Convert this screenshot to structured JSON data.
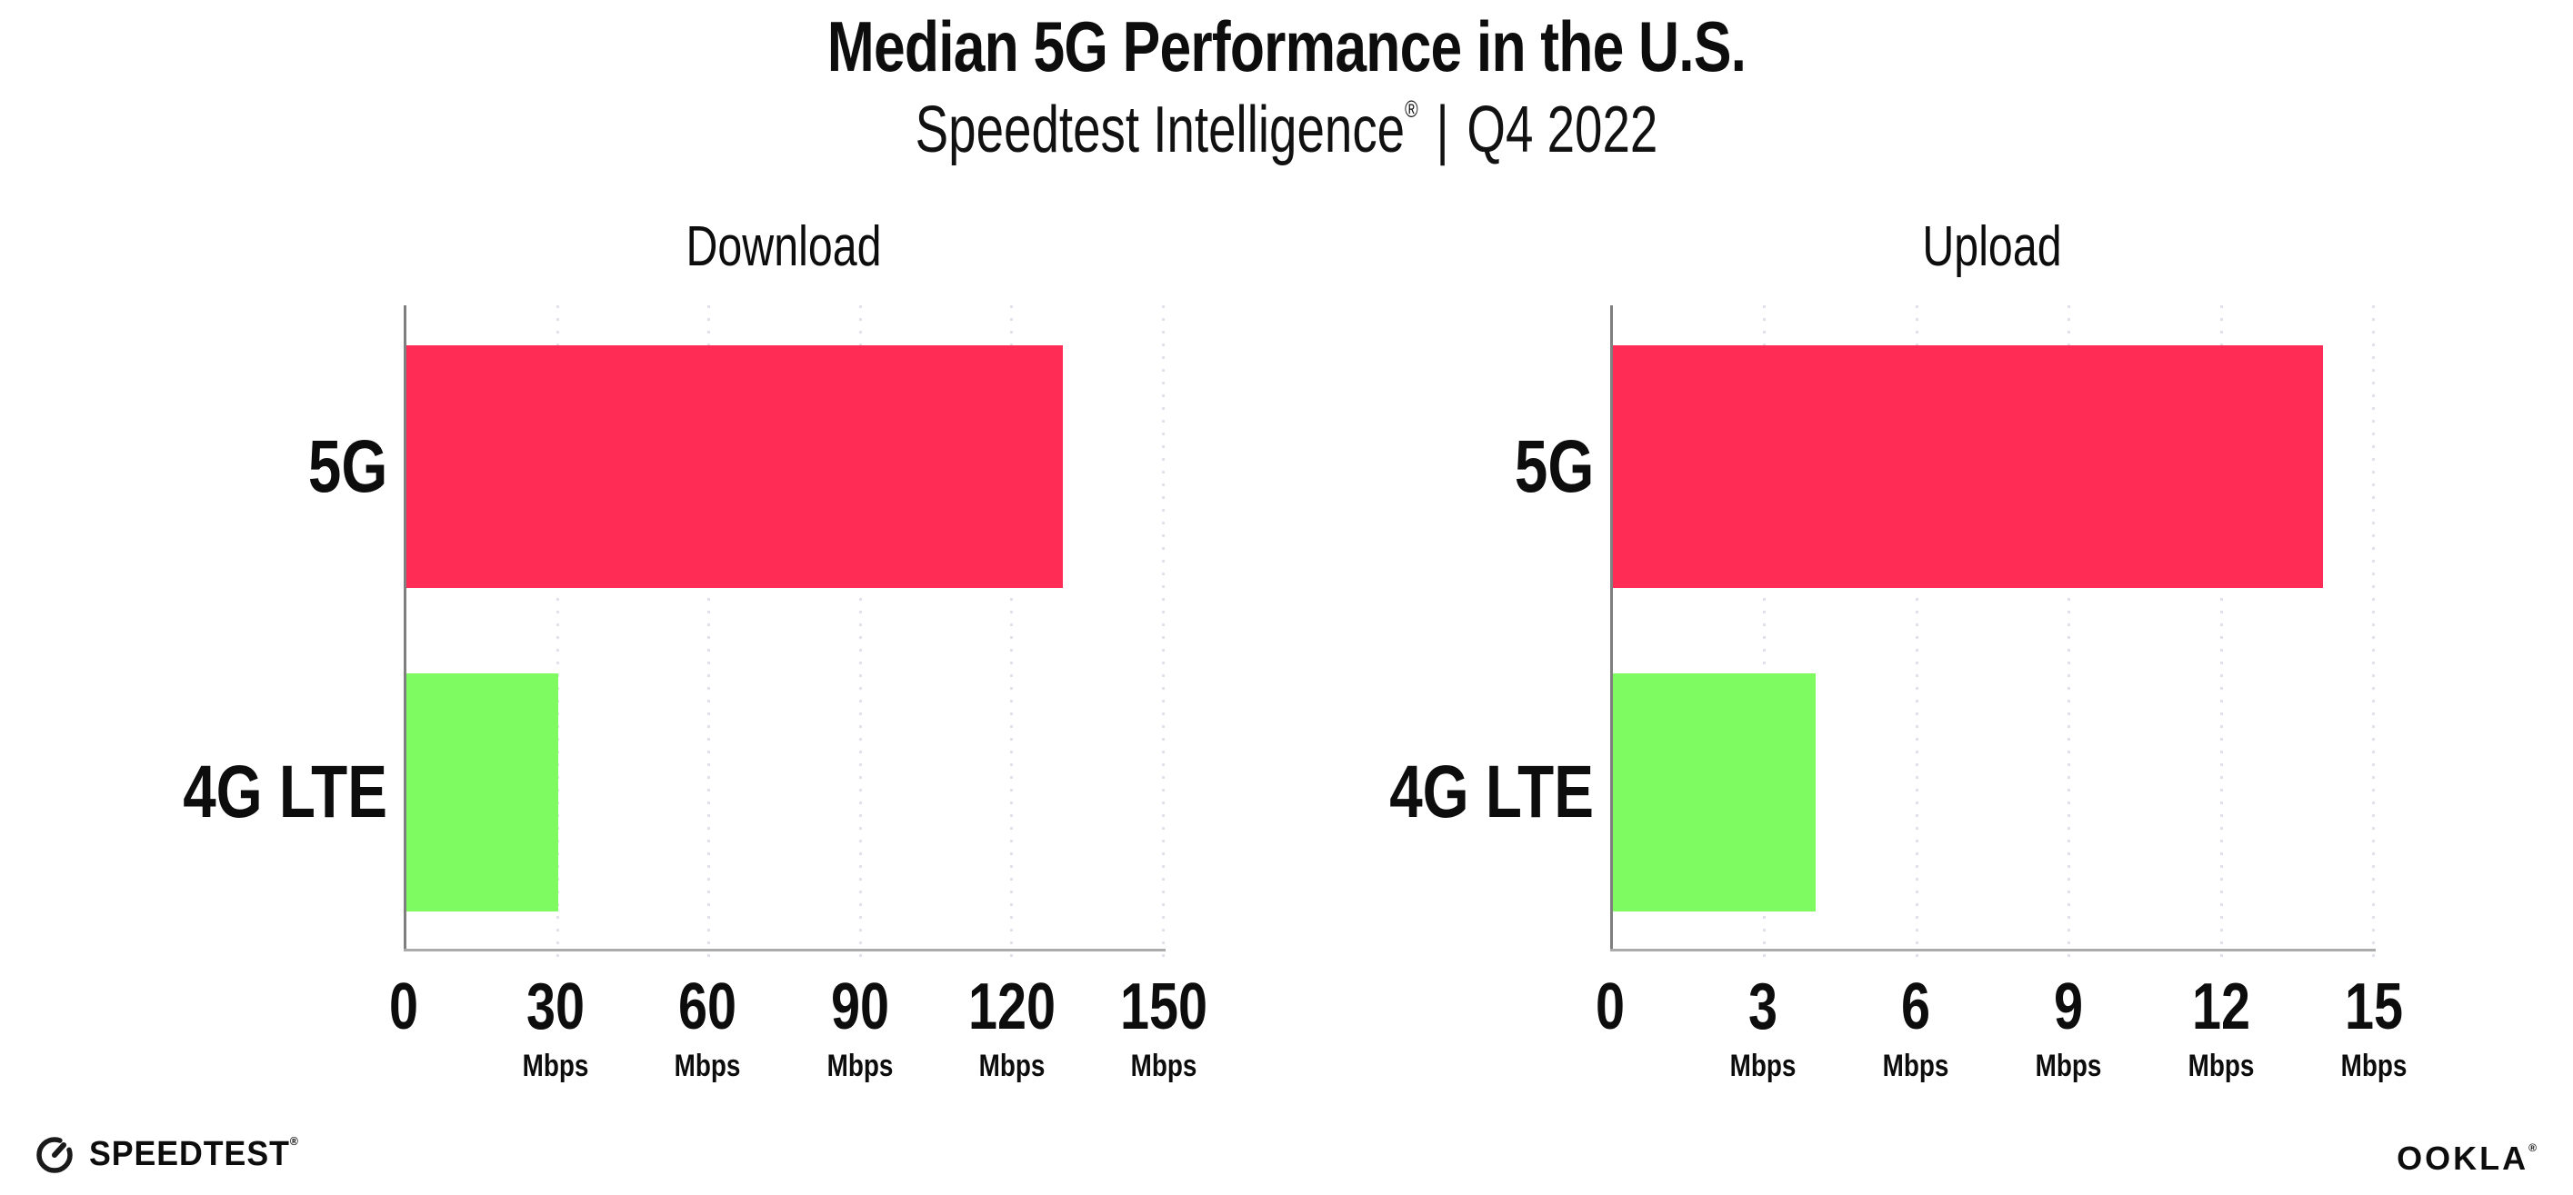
{
  "header": {
    "title": "Median 5G Performance in the U.S.",
    "subtitle_brand": "Speedtest Intelligence",
    "subtitle_reg": "®",
    "subtitle_sep": "|",
    "subtitle_period": "Q4 2022"
  },
  "colors": {
    "bar_5g": "#ff2d55",
    "bar_4g": "#7efb61",
    "grid": "#e1e1ec",
    "axis_y": "#7f7f7f",
    "axis_x": "#ababab",
    "text": "#0d0d0d"
  },
  "chart_data": [
    {
      "type": "bar",
      "orientation": "horizontal",
      "title": "Download",
      "categories": [
        "5G",
        "4G LTE"
      ],
      "values": [
        130,
        30
      ],
      "unit": "Mbps",
      "xlim": [
        0,
        150
      ],
      "xticks": [
        0,
        30,
        60,
        90,
        120,
        150
      ],
      "grid": "dotted-vertical",
      "bar_colors": [
        "#ff2d55",
        "#7efb61"
      ],
      "legend_position": "none"
    },
    {
      "type": "bar",
      "orientation": "horizontal",
      "title": "Upload",
      "categories": [
        "5G",
        "4G LTE"
      ],
      "values": [
        14,
        4
      ],
      "unit": "Mbps",
      "xlim": [
        0,
        15
      ],
      "xticks": [
        0,
        3,
        6,
        9,
        12,
        15
      ],
      "grid": "dotted-vertical",
      "bar_colors": [
        "#ff2d55",
        "#7efb61"
      ],
      "legend_position": "none"
    }
  ],
  "footer": {
    "speedtest_label": "SPEEDTEST",
    "speedtest_mark": "®",
    "ookla_label": "OOKLA",
    "ookla_mark": "®"
  }
}
